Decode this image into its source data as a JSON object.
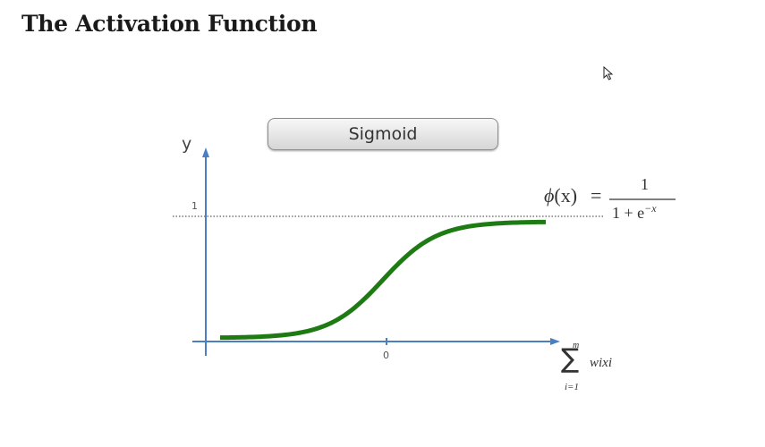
{
  "slide": {
    "title": "The Activation Function",
    "button_label": "Sigmoid"
  },
  "axes": {
    "y_label": "y",
    "y_tick": "1",
    "x_tick": "0"
  },
  "formula": {
    "lhs_fn": "ϕ",
    "lhs_arg": "(x)",
    "equals": "=",
    "numerator": "1",
    "denominator_base": "1 + e",
    "denominator_exponent": "−x"
  },
  "x_axis_formula": {
    "upper_limit": "m",
    "sum_symbol": "∑",
    "term": "wixi",
    "lower_limit": "i=1"
  },
  "chart_data": {
    "type": "line",
    "series": [
      {
        "function": "sigmoid",
        "x": [
          -6,
          -5,
          -4,
          -3,
          -2,
          -1,
          0,
          1,
          2,
          3,
          4,
          5,
          6
        ],
        "values": [
          0.0025,
          0.0067,
          0.018,
          0.047,
          0.119,
          0.269,
          0.5,
          0.731,
          0.881,
          0.953,
          0.982,
          0.993,
          0.9975
        ]
      }
    ],
    "xlim": [
      -6,
      6
    ],
    "ylim": [
      0,
      1
    ],
    "reference_line": {
      "y": 1,
      "style": "dotted"
    },
    "grid": false
  },
  "colors": {
    "axis": "#4a7fc1",
    "curve": "#1e7a12",
    "reference_line": "#777777"
  },
  "icons": {
    "cursor": "mouse-pointer-icon"
  }
}
